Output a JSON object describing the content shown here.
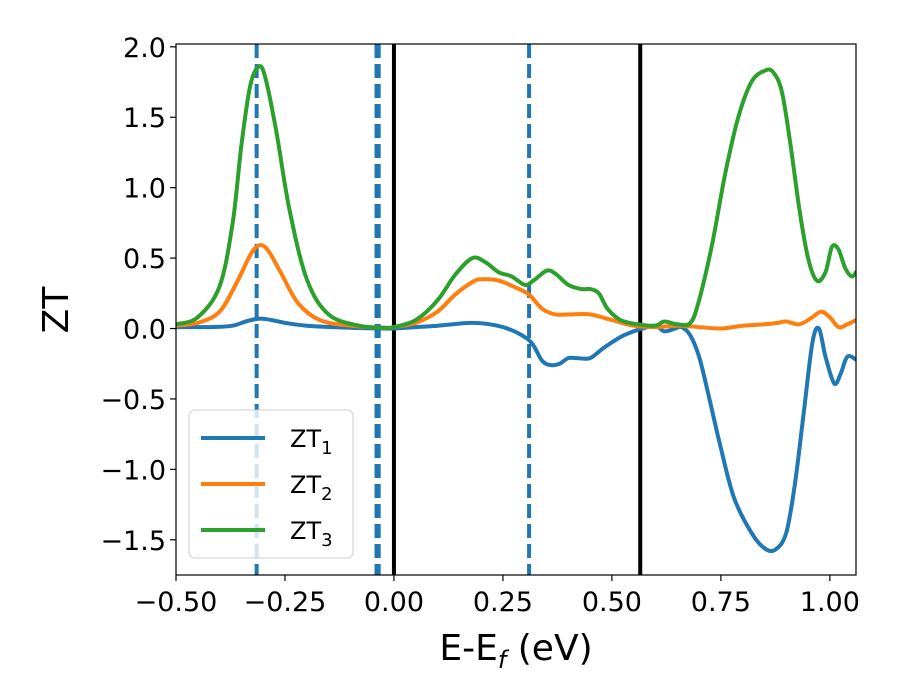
{
  "chart_data": {
    "type": "line",
    "title": "",
    "xlabel": {
      "main": "E-E",
      "sub": "f",
      "unit": " (eV)"
    },
    "ylabel": "ZT",
    "xlim": [
      -0.5,
      1.06
    ],
    "ylim": [
      -1.75,
      2.02
    ],
    "grid": false,
    "x_ticks": [
      -0.5,
      -0.25,
      0.0,
      0.25,
      0.5,
      0.75,
      1.0
    ],
    "x_tick_labels": [
      "−0.50",
      "−0.25",
      "0.00",
      "0.25",
      "0.50",
      "0.75",
      "1.00"
    ],
    "y_ticks": [
      -1.5,
      -1.0,
      -0.5,
      0.0,
      0.5,
      1.0,
      1.5,
      2.0
    ],
    "y_tick_labels": [
      "−1.5",
      "−1.0",
      "−0.5",
      "0.0",
      "0.5",
      "1.0",
      "1.5",
      "2.0"
    ],
    "legend": {
      "position": "lower-left",
      "entries": [
        {
          "main": "ZT",
          "sub": "1"
        },
        {
          "main": "ZT",
          "sub": "2"
        },
        {
          "main": "ZT",
          "sub": "3"
        }
      ]
    },
    "vlines_dashed": [
      -0.315,
      -0.04,
      -0.035,
      0.31
    ],
    "vlines_solid": [
      0.0,
      0.565
    ],
    "series": [
      {
        "color": "#1f77b4",
        "points": [
          [
            -0.5,
            0.01
          ],
          [
            -0.42,
            0.01
          ],
          [
            -0.37,
            0.02
          ],
          [
            -0.34,
            0.05
          ],
          [
            -0.31,
            0.07
          ],
          [
            -0.28,
            0.06
          ],
          [
            -0.25,
            0.04
          ],
          [
            -0.2,
            0.02
          ],
          [
            -0.1,
            0.005
          ],
          [
            -0.02,
            0.0
          ],
          [
            0.0,
            0.0
          ],
          [
            0.05,
            0.01
          ],
          [
            0.1,
            0.02
          ],
          [
            0.15,
            0.035
          ],
          [
            0.18,
            0.04
          ],
          [
            0.22,
            0.03
          ],
          [
            0.26,
            0.0
          ],
          [
            0.3,
            -0.06
          ],
          [
            0.32,
            -0.12
          ],
          [
            0.34,
            -0.23
          ],
          [
            0.36,
            -0.26
          ],
          [
            0.38,
            -0.25
          ],
          [
            0.4,
            -0.21
          ],
          [
            0.42,
            -0.21
          ],
          [
            0.45,
            -0.21
          ],
          [
            0.48,
            -0.14
          ],
          [
            0.52,
            -0.06
          ],
          [
            0.55,
            -0.02
          ],
          [
            0.57,
            0.0
          ],
          [
            0.6,
            0.02
          ],
          [
            0.62,
            -0.02
          ],
          [
            0.645,
            0.0
          ],
          [
            0.66,
            0.01
          ],
          [
            0.68,
            -0.05
          ],
          [
            0.7,
            -0.2
          ],
          [
            0.72,
            -0.45
          ],
          [
            0.75,
            -0.85
          ],
          [
            0.78,
            -1.2
          ],
          [
            0.82,
            -1.45
          ],
          [
            0.85,
            -1.56
          ],
          [
            0.875,
            -1.57
          ],
          [
            0.9,
            -1.45
          ],
          [
            0.92,
            -1.1
          ],
          [
            0.94,
            -0.6
          ],
          [
            0.96,
            -0.1
          ],
          [
            0.975,
            0.0
          ],
          [
            0.99,
            -0.2
          ],
          [
            1.01,
            -0.39
          ],
          [
            1.025,
            -0.32
          ],
          [
            1.04,
            -0.2
          ],
          [
            1.06,
            -0.22
          ]
        ]
      },
      {
        "color": "#ff7f0e",
        "points": [
          [
            -0.5,
            0.02
          ],
          [
            -0.45,
            0.04
          ],
          [
            -0.4,
            0.12
          ],
          [
            -0.36,
            0.33
          ],
          [
            -0.33,
            0.52
          ],
          [
            -0.31,
            0.59
          ],
          [
            -0.29,
            0.56
          ],
          [
            -0.26,
            0.4
          ],
          [
            -0.22,
            0.18
          ],
          [
            -0.17,
            0.06
          ],
          [
            -0.1,
            0.02
          ],
          [
            -0.02,
            0.005
          ],
          [
            0.0,
            0.01
          ],
          [
            0.05,
            0.04
          ],
          [
            0.1,
            0.12
          ],
          [
            0.14,
            0.24
          ],
          [
            0.18,
            0.33
          ],
          [
            0.2,
            0.35
          ],
          [
            0.24,
            0.34
          ],
          [
            0.28,
            0.29
          ],
          [
            0.31,
            0.24
          ],
          [
            0.34,
            0.14
          ],
          [
            0.37,
            0.1
          ],
          [
            0.4,
            0.1
          ],
          [
            0.45,
            0.1
          ],
          [
            0.5,
            0.06
          ],
          [
            0.55,
            0.02
          ],
          [
            0.6,
            0.01
          ],
          [
            0.65,
            0.02
          ],
          [
            0.7,
            0.01
          ],
          [
            0.75,
            0.0
          ],
          [
            0.8,
            0.02
          ],
          [
            0.85,
            0.03
          ],
          [
            0.88,
            0.04
          ],
          [
            0.9,
            0.05
          ],
          [
            0.93,
            0.03
          ],
          [
            0.96,
            0.08
          ],
          [
            0.98,
            0.12
          ],
          [
            1.0,
            0.08
          ],
          [
            1.02,
            0.01
          ],
          [
            1.04,
            0.03
          ],
          [
            1.06,
            0.06
          ]
        ]
      },
      {
        "color": "#2ca02c",
        "points": [
          [
            -0.5,
            0.03
          ],
          [
            -0.45,
            0.08
          ],
          [
            -0.4,
            0.3
          ],
          [
            -0.37,
            0.75
          ],
          [
            -0.35,
            1.3
          ],
          [
            -0.33,
            1.72
          ],
          [
            -0.31,
            1.86
          ],
          [
            -0.295,
            1.78
          ],
          [
            -0.27,
            1.4
          ],
          [
            -0.24,
            0.85
          ],
          [
            -0.2,
            0.35
          ],
          [
            -0.15,
            0.1
          ],
          [
            -0.08,
            0.02
          ],
          [
            -0.02,
            0.005
          ],
          [
            0.0,
            0.01
          ],
          [
            0.05,
            0.06
          ],
          [
            0.1,
            0.2
          ],
          [
            0.14,
            0.38
          ],
          [
            0.18,
            0.5
          ],
          [
            0.21,
            0.47
          ],
          [
            0.24,
            0.4
          ],
          [
            0.27,
            0.37
          ],
          [
            0.3,
            0.31
          ],
          [
            0.32,
            0.34
          ],
          [
            0.35,
            0.41
          ],
          [
            0.37,
            0.39
          ],
          [
            0.4,
            0.31
          ],
          [
            0.43,
            0.28
          ],
          [
            0.45,
            0.28
          ],
          [
            0.47,
            0.25
          ],
          [
            0.49,
            0.14
          ],
          [
            0.52,
            0.06
          ],
          [
            0.56,
            0.03
          ],
          [
            0.6,
            0.02
          ],
          [
            0.62,
            0.05
          ],
          [
            0.65,
            0.03
          ],
          [
            0.68,
            0.04
          ],
          [
            0.7,
            0.2
          ],
          [
            0.73,
            0.6
          ],
          [
            0.76,
            1.1
          ],
          [
            0.79,
            1.5
          ],
          [
            0.82,
            1.75
          ],
          [
            0.85,
            1.83
          ],
          [
            0.87,
            1.82
          ],
          [
            0.89,
            1.68
          ],
          [
            0.91,
            1.3
          ],
          [
            0.93,
            0.85
          ],
          [
            0.95,
            0.5
          ],
          [
            0.97,
            0.34
          ],
          [
            0.99,
            0.4
          ],
          [
            1.005,
            0.58
          ],
          [
            1.02,
            0.56
          ],
          [
            1.035,
            0.43
          ],
          [
            1.05,
            0.37
          ],
          [
            1.06,
            0.4
          ]
        ]
      }
    ]
  }
}
